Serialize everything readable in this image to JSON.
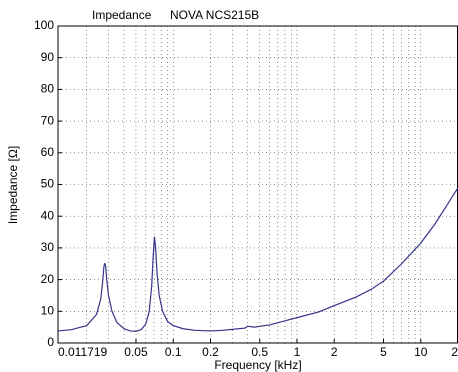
{
  "chart_data": {
    "type": "line",
    "title": "Impedance",
    "subtitle": "NOVA NCS215B",
    "xlabel": "Frequency [kHz]",
    "ylabel": "Impedance [Ω]",
    "xscale": "log",
    "grid": true,
    "xlim": [
      0.011719,
      20
    ],
    "ylim": [
      0,
      100
    ],
    "xticks": [
      0.011719,
      0.05,
      0.1,
      0.2,
      0.5,
      1,
      2,
      5,
      10,
      20
    ],
    "x_minor_ticks": [
      0.02,
      0.03,
      0.04,
      0.06,
      0.07,
      0.08,
      0.09,
      0.3,
      0.4,
      0.6,
      0.7,
      0.8,
      0.9,
      3,
      4,
      6,
      7,
      8,
      9
    ],
    "yticks": [
      0,
      10,
      20,
      30,
      40,
      50,
      60,
      70,
      80,
      90,
      100
    ],
    "x": [
      0.011719,
      0.015,
      0.02,
      0.024,
      0.026,
      0.027,
      0.0275,
      0.028,
      0.0285,
      0.029,
      0.03,
      0.032,
      0.035,
      0.04,
      0.045,
      0.05,
      0.055,
      0.06,
      0.064,
      0.067,
      0.069,
      0.0705,
      0.072,
      0.074,
      0.077,
      0.082,
      0.09,
      0.1,
      0.12,
      0.15,
      0.2,
      0.25,
      0.3,
      0.38,
      0.4,
      0.45,
      0.6,
      0.8,
      1,
      1.5,
      2,
      3,
      4,
      5,
      7,
      10,
      13,
      16,
      20
    ],
    "series": [
      {
        "name": "Impedance",
        "color": "#34348a",
        "values": [
          3.8,
          4.2,
          5.5,
          9,
          14,
          20,
          24,
          25.2,
          24,
          20,
          15,
          10,
          6.5,
          4.5,
          3.8,
          3.7,
          4.2,
          6,
          10,
          18,
          28,
          33.5,
          30,
          22,
          15,
          10,
          6.8,
          5.5,
          4.5,
          4,
          3.8,
          4,
          4.3,
          4.7,
          5.3,
          5,
          5.7,
          7,
          8,
          9.8,
          11.8,
          14.5,
          17,
          19.5,
          25,
          31.5,
          37.5,
          43,
          49
        ]
      }
    ]
  }
}
